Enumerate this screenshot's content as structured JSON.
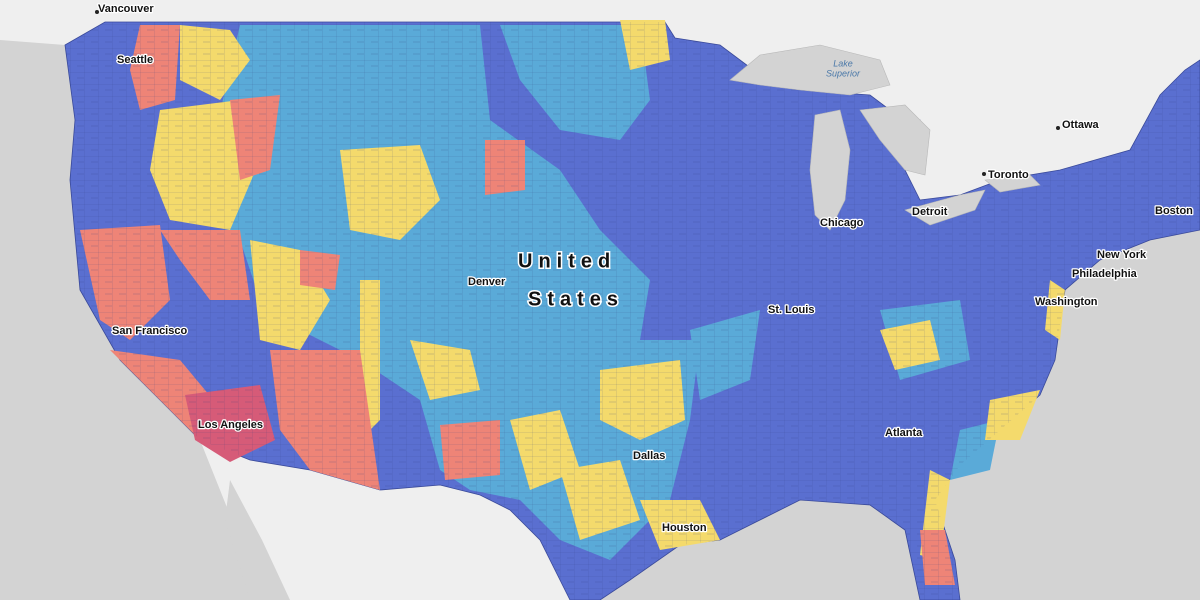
{
  "map": {
    "country_label": [
      "United",
      "States"
    ],
    "water_label": [
      "Lake",
      "Superior"
    ],
    "cities": [
      "Vancouver",
      "Seattle",
      "Ottawa",
      "Toronto",
      "Boston",
      "Detroit",
      "Chicago",
      "New York",
      "Philadelphia",
      "Washington",
      "Denver",
      "St. Louis",
      "San Francisco",
      "Los Angeles",
      "Atlanta",
      "Dallas",
      "Houston"
    ]
  }
}
